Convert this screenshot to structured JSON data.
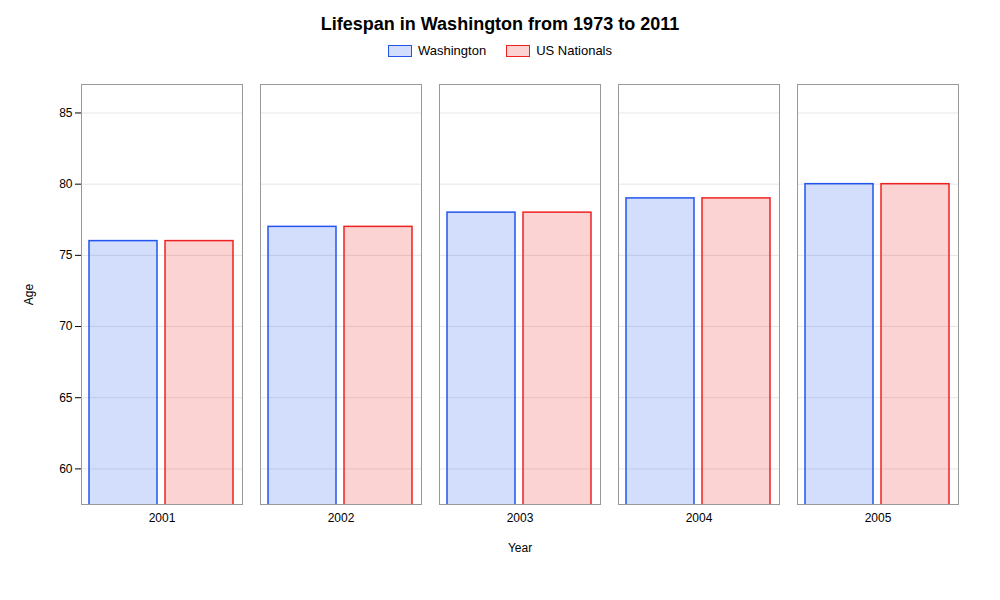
{
  "chart_data": {
    "type": "bar",
    "title": "Lifespan in Washington from 1973 to 2011",
    "xlabel": "Year",
    "ylabel": "Age",
    "categories": [
      "2001",
      "2002",
      "2003",
      "2004",
      "2005"
    ],
    "series": [
      {
        "name": "Washington",
        "color": "#2255ee",
        "values": [
          76,
          77,
          78,
          79,
          80
        ]
      },
      {
        "name": "US Nationals",
        "color": "#ee2222",
        "values": [
          76,
          77,
          78,
          79,
          80
        ]
      }
    ],
    "ylim": [
      57.5,
      87
    ],
    "yticks": [
      60,
      65,
      70,
      75,
      80,
      85
    ],
    "grid": true,
    "legend": "top"
  }
}
